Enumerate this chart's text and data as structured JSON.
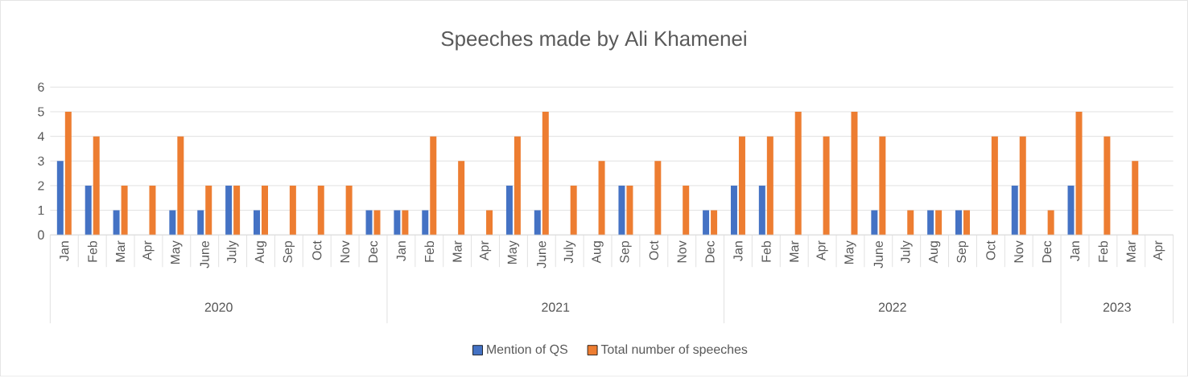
{
  "chart_data": {
    "type": "bar",
    "title": "Speeches made by Ali Khamenei",
    "categories": [
      "Jan",
      "Feb",
      "Mar",
      "Apr",
      "May",
      "June",
      "July",
      "Aug",
      "Sep",
      "Oct",
      "Nov",
      "Dec",
      "Jan",
      "Feb",
      "Mar",
      "Apr",
      "May",
      "June",
      "July",
      "Aug",
      "Sep",
      "Oct",
      "Nov",
      "Dec",
      "Jan",
      "Feb",
      "Mar",
      "Apr",
      "May",
      "June",
      "July",
      "Aug",
      "Sep",
      "Oct",
      "Nov",
      "Dec",
      "Jan",
      "Feb",
      "Mar",
      "Apr"
    ],
    "series": [
      {
        "name": "Mention of QS",
        "color": "#4472c4",
        "values": [
          3,
          2,
          1,
          0,
          1,
          1,
          2,
          1,
          0,
          0,
          0,
          1,
          1,
          1,
          0,
          0,
          2,
          1,
          0,
          0,
          2,
          0,
          0,
          1,
          2,
          2,
          0,
          0,
          0,
          1,
          0,
          1,
          1,
          0,
          2,
          0,
          2,
          0,
          0,
          0
        ]
      },
      {
        "name": "Total number of speeches",
        "color": "#ed7d31",
        "values": [
          5,
          4,
          2,
          2,
          4,
          2,
          2,
          2,
          2,
          2,
          2,
          1,
          1,
          4,
          3,
          1,
          4,
          5,
          2,
          3,
          2,
          3,
          2,
          1,
          4,
          4,
          5,
          4,
          5,
          4,
          1,
          1,
          1,
          4,
          4,
          1,
          5,
          4,
          3,
          0
        ]
      }
    ],
    "annotations": [
      "2020",
      "2021",
      "2022",
      "2023"
    ],
    "ylim": [
      0,
      6
    ],
    "yticks": [
      0,
      1,
      2,
      3,
      4,
      5,
      6
    ],
    "grid": "y",
    "legend": "bottom"
  }
}
